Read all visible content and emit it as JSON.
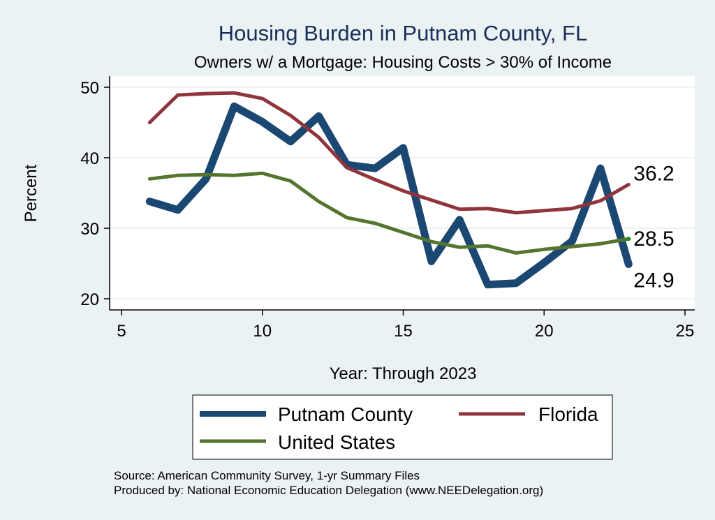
{
  "chart_data": {
    "type": "line",
    "title": "Housing Burden in Putnam County, FL",
    "subtitle": "Owners w/ a Mortgage: Housing Costs > 30% of Income",
    "xlabel": "Year: Through 2023",
    "ylabel": "Percent",
    "xlim": [
      5,
      25
    ],
    "ylim": [
      20,
      50
    ],
    "xticks": [
      5,
      10,
      15,
      20,
      25
    ],
    "yticks": [
      20,
      30,
      40,
      50
    ],
    "grid": true,
    "legend_placement": "bottom",
    "x": [
      6,
      7,
      8,
      9,
      10,
      11,
      12,
      13,
      14,
      15,
      16,
      17,
      18,
      19,
      20,
      21,
      22,
      23
    ],
    "series": [
      {
        "name": "Putnam County",
        "color": "#1b4872",
        "values": [
          33.8,
          32.6,
          37.0,
          47.3,
          45.1,
          42.3,
          45.9,
          39.0,
          38.5,
          41.4,
          25.3,
          31.2,
          22.0,
          22.2,
          25.1,
          28.2,
          38.5,
          24.9
        ],
        "end_label": "24.9"
      },
      {
        "name": "Florida",
        "color": "#90353b",
        "values": [
          45.0,
          48.9,
          49.1,
          49.2,
          48.4,
          46.0,
          42.9,
          38.6,
          36.9,
          35.3,
          34.0,
          32.7,
          32.8,
          32.2,
          32.5,
          32.8,
          33.9,
          36.2
        ],
        "end_label": "36.2"
      },
      {
        "name": "United States",
        "color": "#55752f",
        "values": [
          37.0,
          37.5,
          37.6,
          37.5,
          37.8,
          36.7,
          33.8,
          31.5,
          30.7,
          29.4,
          28.1,
          27.3,
          27.5,
          26.5,
          27.0,
          27.4,
          27.8,
          28.5
        ],
        "end_label": "28.5"
      }
    ],
    "notes": [
      "Source: American Community Survey, 1-yr Summary Files",
      "Produced by: National Economic Education Delegation (www.NEEDelegation.org)"
    ]
  }
}
